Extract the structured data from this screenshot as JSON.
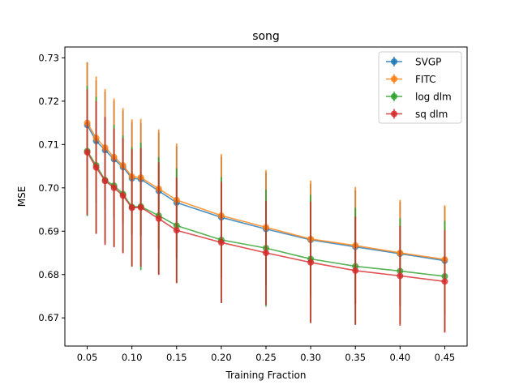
{
  "chart_data": {
    "type": "line",
    "title": "song",
    "xlabel": "Training Fraction",
    "ylabel": "MSE",
    "xlim": [
      0.025,
      0.475
    ],
    "ylim": [
      0.6635,
      0.7325
    ],
    "xticks": [
      0.05,
      0.1,
      0.15,
      0.2,
      0.25,
      0.3,
      0.35,
      0.4,
      0.45
    ],
    "xtick_labels": [
      "0.05",
      "0.10",
      "0.15",
      "0.20",
      "0.25",
      "0.30",
      "0.35",
      "0.40",
      "0.45"
    ],
    "yticks": [
      0.67,
      0.68,
      0.69,
      0.7,
      0.71,
      0.72,
      0.73
    ],
    "ytick_labels": [
      "0.67",
      "0.68",
      "0.69",
      "0.70",
      "0.71",
      "0.72",
      "0.73"
    ],
    "grid": false,
    "legend_position": "top-right",
    "x": [
      0.05,
      0.06,
      0.07,
      0.08,
      0.09,
      0.1,
      0.11,
      0.13,
      0.15,
      0.2,
      0.25,
      0.3,
      0.35,
      0.4,
      0.45
    ],
    "series": [
      {
        "name": "SVGP",
        "color": "#1f77b4",
        "values": [
          0.7145,
          0.7108,
          0.7087,
          0.7066,
          0.7048,
          0.7022,
          0.702,
          0.6993,
          0.6966,
          0.6932,
          0.6905,
          0.688,
          0.6864,
          0.6848,
          0.6832
        ],
        "errors": [
          0.0145,
          0.014,
          0.0135,
          0.0135,
          0.013,
          0.013,
          0.013,
          0.0135,
          0.013,
          0.014,
          0.013,
          0.013,
          0.013,
          0.012,
          0.0125
        ]
      },
      {
        "name": "FITC",
        "color": "#ff7f0e",
        "values": [
          0.715,
          0.7115,
          0.7093,
          0.7071,
          0.7052,
          0.7026,
          0.7024,
          0.6998,
          0.6972,
          0.6936,
          0.6909,
          0.6882,
          0.6867,
          0.685,
          0.6835
        ],
        "errors": [
          0.014,
          0.0142,
          0.0135,
          0.0135,
          0.0132,
          0.0132,
          0.0135,
          0.0137,
          0.013,
          0.0142,
          0.0132,
          0.0135,
          0.0135,
          0.0122,
          0.0125
        ]
      },
      {
        "name": "log dlm",
        "color": "#2ca02c",
        "values": [
          0.7085,
          0.7052,
          0.7018,
          0.7005,
          0.6986,
          0.6956,
          0.6957,
          0.6936,
          0.6913,
          0.688,
          0.6861,
          0.6836,
          0.6819,
          0.6808,
          0.6796
        ],
        "errors": [
          0.015,
          0.0158,
          0.0145,
          0.014,
          0.0135,
          0.0138,
          0.0147,
          0.0135,
          0.0132,
          0.0145,
          0.0135,
          0.0148,
          0.0135,
          0.0122,
          0.0128
        ]
      },
      {
        "name": "sq dlm",
        "color": "#d62728",
        "values": [
          0.7082,
          0.7047,
          0.7016,
          0.7,
          0.6982,
          0.6954,
          0.6955,
          0.6929,
          0.6902,
          0.6874,
          0.685,
          0.6828,
          0.6809,
          0.6797,
          0.6784
        ],
        "errors": [
          0.0145,
          0.0153,
          0.0148,
          0.0137,
          0.0133,
          0.0135,
          0.0137,
          0.013,
          0.0122,
          0.014,
          0.012,
          0.014,
          0.0125,
          0.0115,
          0.0118
        ]
      }
    ]
  }
}
